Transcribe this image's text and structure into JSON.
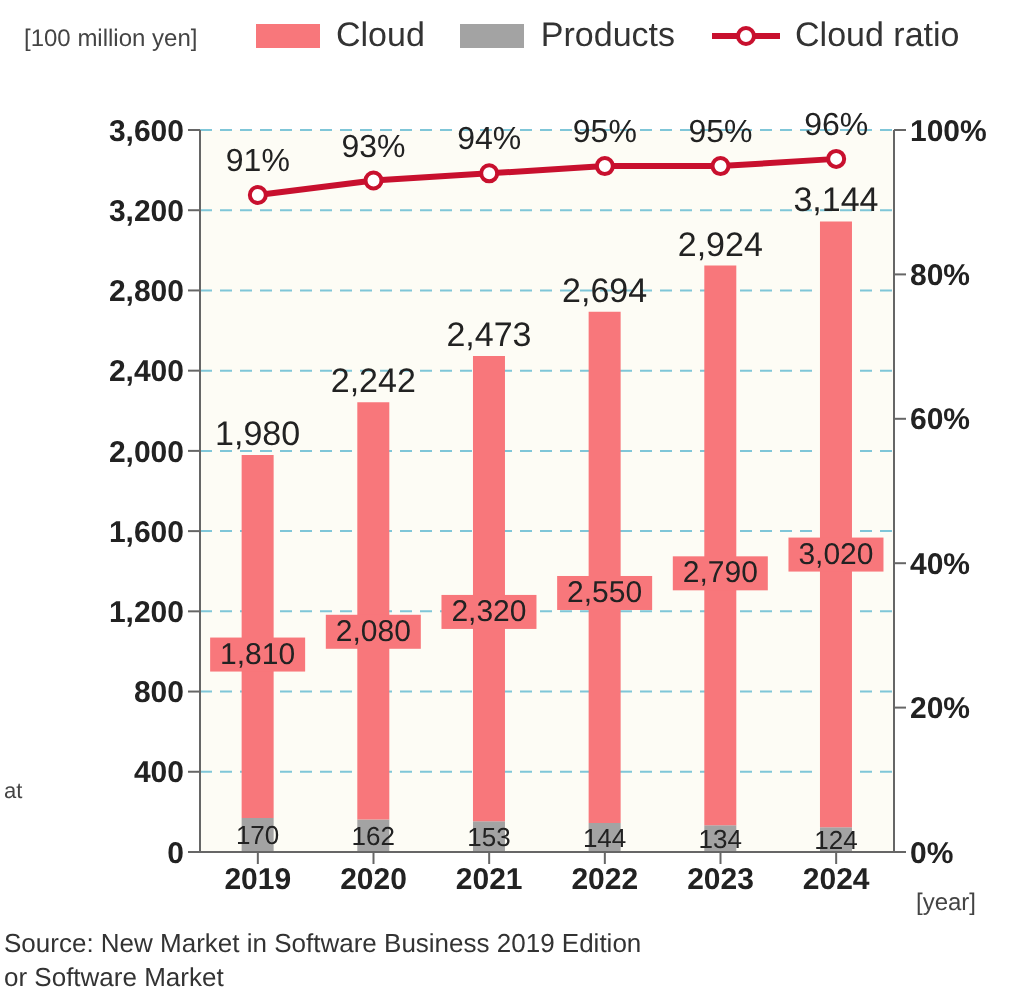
{
  "chart_data": {
    "type": "bar",
    "stacked": true,
    "ylabel": "[100 million yen]",
    "xlabel": "[year]",
    "categories": [
      "2019",
      "2020",
      "2021",
      "2022",
      "2023",
      "2024"
    ],
    "series": [
      {
        "name": "Products",
        "color": "#a3a3a3",
        "values": [
          170,
          162,
          153,
          144,
          134,
          124
        ],
        "value_labels": [
          "170",
          "162",
          "153",
          "144",
          "134",
          "124"
        ]
      },
      {
        "name": "Cloud",
        "color": "#f8777b",
        "values": [
          1810,
          2080,
          2320,
          2550,
          2790,
          3020
        ],
        "value_labels": [
          "1,810",
          "2,080",
          "2,320",
          "2,550",
          "2,790",
          "3,020"
        ]
      },
      {
        "name": "Cloud ratio",
        "type": "line",
        "axis": "y2",
        "color": "#c8102e",
        "marker": "circle",
        "values": [
          91,
          93,
          94,
          95,
          95,
          96
        ],
        "value_labels": [
          "91%",
          "93%",
          "94%",
          "95%",
          "95%",
          "96%"
        ]
      }
    ],
    "totals": [
      "1,980",
      "2,242",
      "2,473",
      "2,694",
      "2,924",
      "3,144"
    ],
    "ylim": [
      0,
      3600
    ],
    "yticks": [
      {
        "value": 0,
        "label": "0"
      },
      {
        "value": 400,
        "label": "400"
      },
      {
        "value": 800,
        "label": "800"
      },
      {
        "value": 1200,
        "label": "1,200"
      },
      {
        "value": 1600,
        "label": "1,600"
      },
      {
        "value": 2000,
        "label": "2,000"
      },
      {
        "value": 2400,
        "label": "2,400"
      },
      {
        "value": 2800,
        "label": "2,800"
      },
      {
        "value": 3200,
        "label": "3,200"
      },
      {
        "value": 3600,
        "label": "3,600"
      }
    ],
    "y2lim": [
      0,
      100
    ],
    "y2ticks": [
      {
        "value": 0,
        "label": "0%"
      },
      {
        "value": 20,
        "label": "20%"
      },
      {
        "value": 40,
        "label": "40%"
      },
      {
        "value": 60,
        "label": "60%"
      },
      {
        "value": 80,
        "label": "80%"
      },
      {
        "value": 100,
        "label": "100%"
      }
    ],
    "grid": "y",
    "legend": "top",
    "annotations": [
      "at",
      "Source: New Market in Software Business 2019 Edition",
      "or Software Market"
    ]
  }
}
